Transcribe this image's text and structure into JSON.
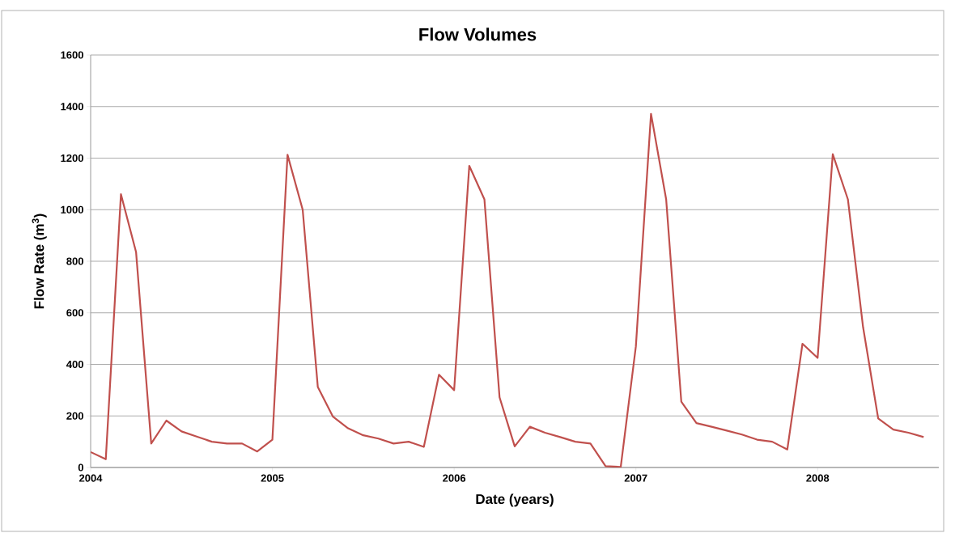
{
  "chart_data": {
    "type": "line",
    "title": "Flow Volumes",
    "xlabel": "Date (years)",
    "ylabel": "Flow Rate  (m$^{3}$)",
    "x": [
      "2004-01",
      "2004-02",
      "2004-03",
      "2004-04",
      "2004-05",
      "2004-06",
      "2004-07",
      "2004-08",
      "2004-09",
      "2004-10",
      "2004-11",
      "2004-12",
      "2005-01",
      "2005-02",
      "2005-03",
      "2005-04",
      "2005-05",
      "2005-06",
      "2005-07",
      "2005-08",
      "2005-09",
      "2005-10",
      "2005-11",
      "2005-12",
      "2006-01",
      "2006-02",
      "2006-03",
      "2006-04",
      "2006-05",
      "2006-06",
      "2006-07",
      "2006-08",
      "2006-09",
      "2006-10",
      "2006-11",
      "2006-12",
      "2007-01",
      "2007-02",
      "2007-03",
      "2007-04",
      "2007-05",
      "2007-06",
      "2007-07",
      "2007-08",
      "2007-09",
      "2007-10",
      "2007-11",
      "2007-12",
      "2008-01",
      "2008-02",
      "2008-03",
      "2008-04",
      "2008-05",
      "2008-06",
      "2008-07",
      "2008-08"
    ],
    "series": [
      {
        "color": "#c0504d",
        "values": [
          60,
          32,
          1060,
          835,
          93,
          182,
          140,
          120,
          100,
          93,
          93,
          62,
          108,
          1213,
          1000,
          312,
          197,
          152,
          125,
          112,
          93,
          100,
          80,
          360,
          300,
          1170,
          1040,
          272,
          82,
          158,
          135,
          118,
          100,
          93,
          5,
          2,
          470,
          1372,
          1040,
          255,
          172,
          158,
          143,
          128,
          108,
          100,
          70,
          480,
          425,
          1215,
          1040,
          545,
          190,
          147,
          135,
          118
        ]
      }
    ],
    "xlim": [
      "2004-01",
      "2008-09"
    ],
    "xticks": [
      "2004",
      "2005",
      "2006",
      "2007",
      "2008"
    ],
    "ylim": [
      0,
      1600
    ],
    "yticks": [
      0,
      200,
      400,
      600,
      800,
      1000,
      1200,
      1400,
      1600
    ],
    "grid": "y",
    "marker": "none",
    "line_style": "solid"
  }
}
